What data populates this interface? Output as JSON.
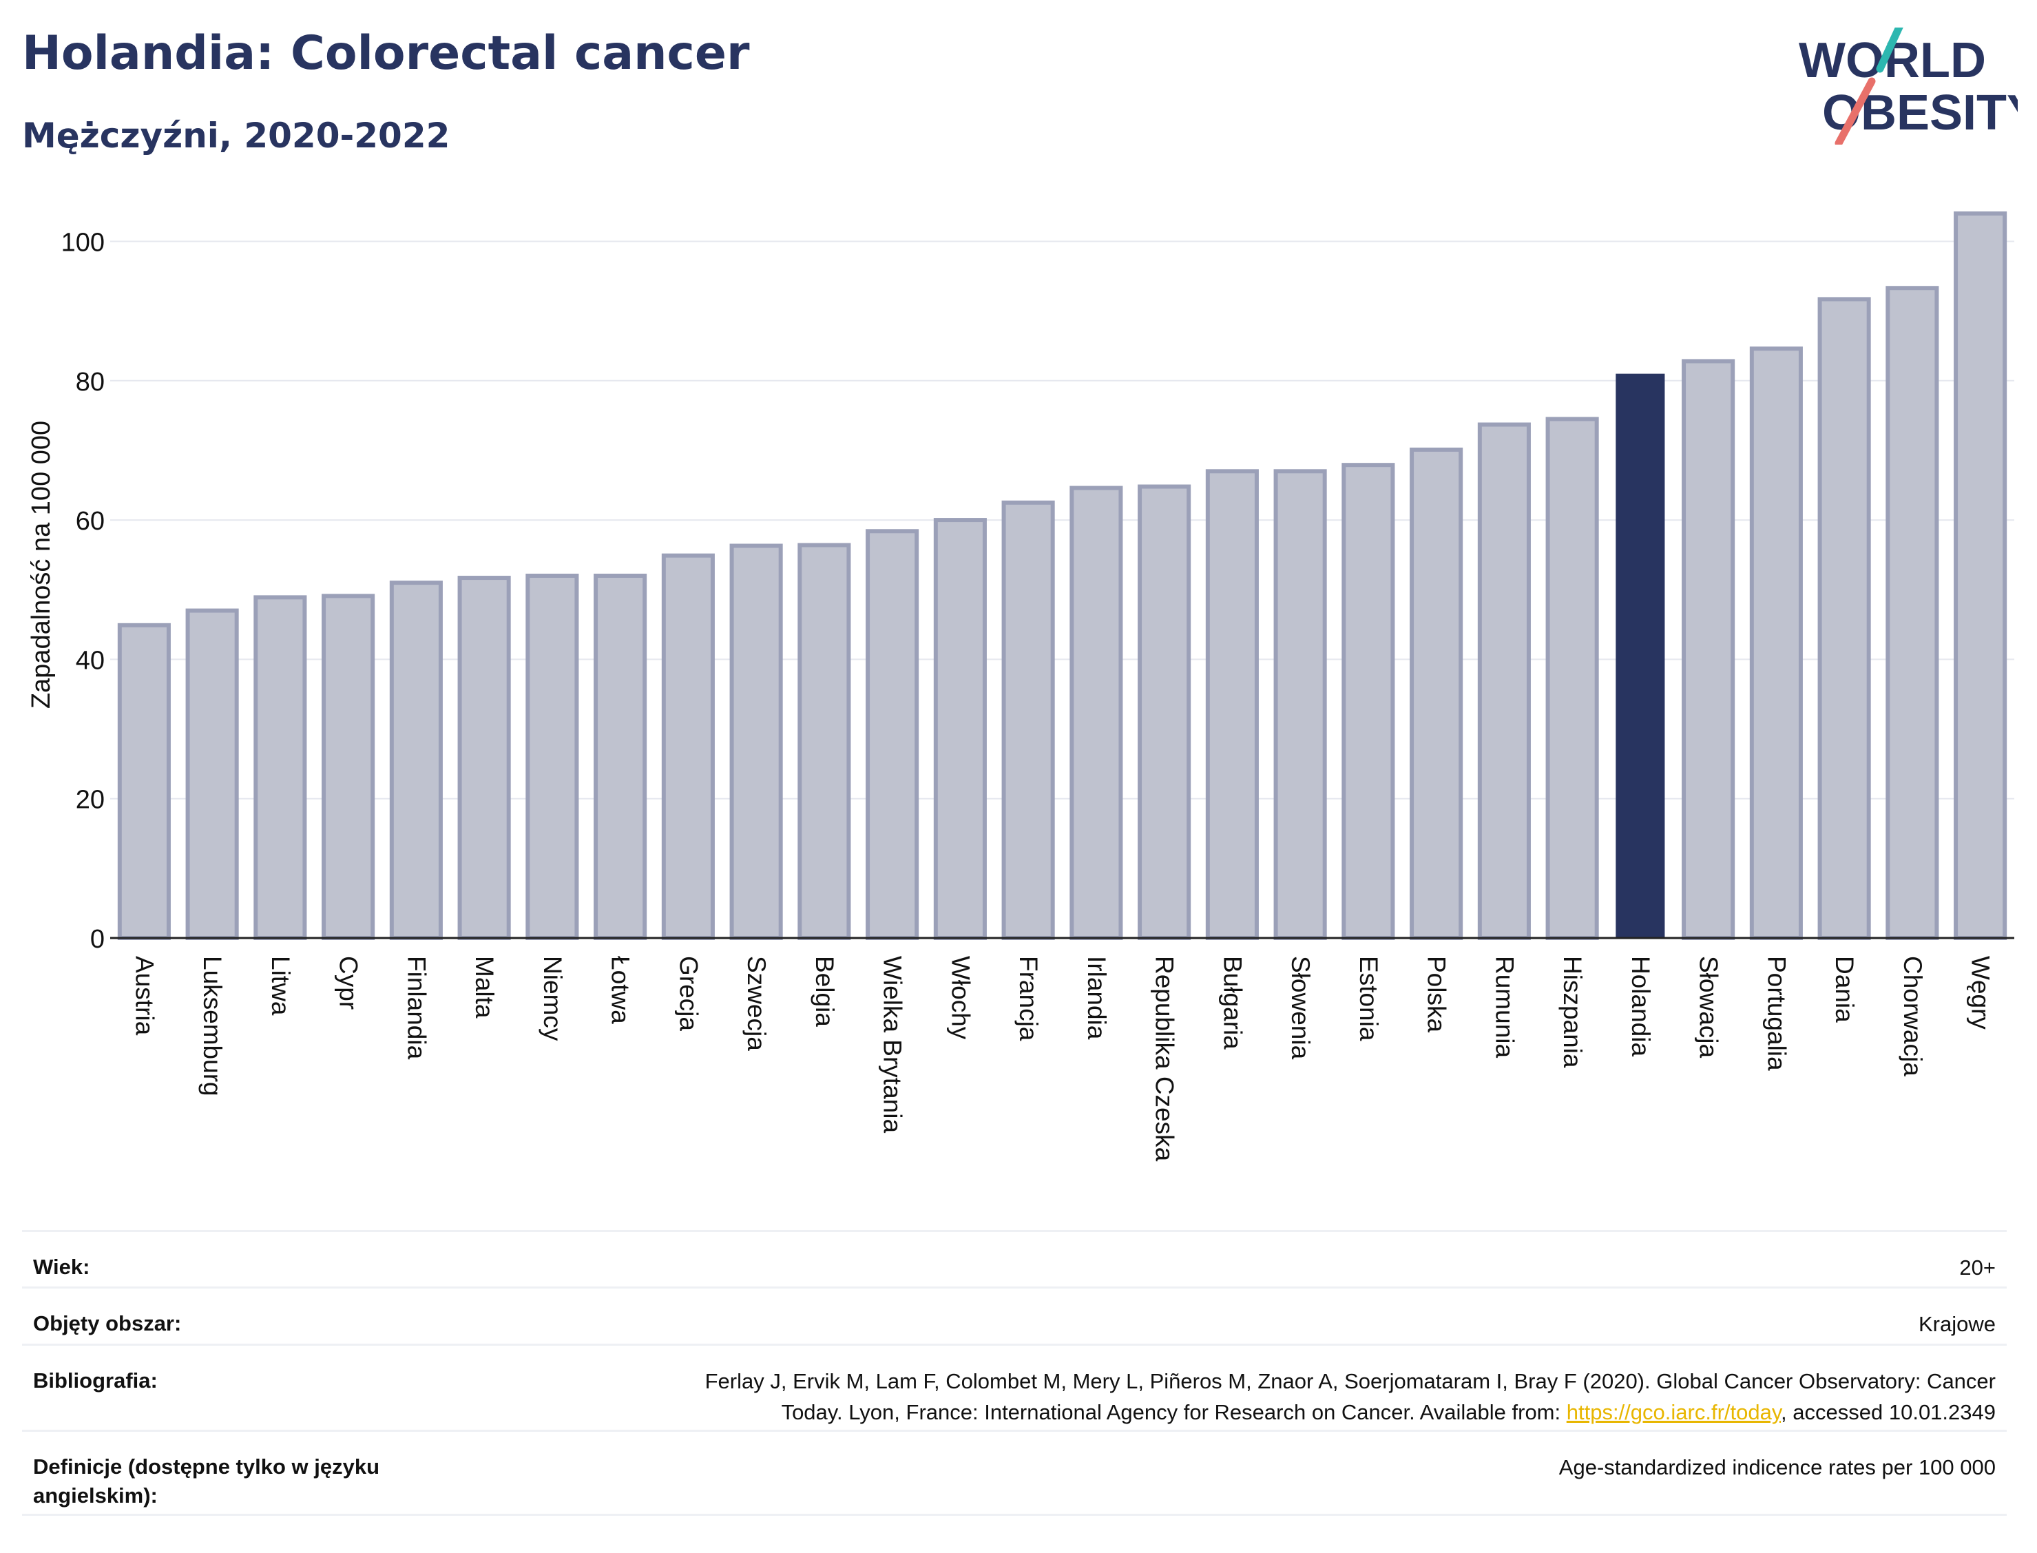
{
  "header": {
    "title": "Holandia: Colorectal cancer",
    "subtitle": "Mężczyźni, 2020-2022"
  },
  "logo": {
    "line1": "WORLD",
    "line2": "OBESITY"
  },
  "colors": {
    "highlight": "#283460",
    "bar_fill": "#bfc2cf",
    "bar_stroke": "#9ba0b8",
    "grid": "#e6e8ef",
    "logo_teal": "#2cb7b0",
    "logo_coral": "#e8706a"
  },
  "chart_data": {
    "type": "bar",
    "ylabel": "Zapadalność na 100 000",
    "ylim": [
      0,
      104
    ],
    "yticks": [
      0,
      20,
      40,
      60,
      80,
      100
    ],
    "grid": true,
    "highlight": "Holandia",
    "categories": [
      "Austria",
      "Luksemburg",
      "Litwa",
      "Cypr",
      "Finlandia",
      "Malta",
      "Niemcy",
      "Łotwa",
      "Grecja",
      "Szwecja",
      "Belgia",
      "Wielka Brytania",
      "Włochy",
      "Francja",
      "Irlandia",
      "Republika Czeska",
      "Bułgaria",
      "Słowenia",
      "Estonia",
      "Polska",
      "Rumunia",
      "Hiszpania",
      "Holandia",
      "Słowacja",
      "Portugalia",
      "Dania",
      "Chorwacja",
      "Węgry"
    ],
    "values": [
      44.9,
      47.0,
      48.9,
      49.1,
      51.0,
      51.7,
      52.0,
      52.0,
      54.9,
      56.3,
      56.4,
      58.4,
      60.0,
      62.5,
      64.6,
      64.8,
      67.0,
      67.0,
      67.9,
      70.1,
      73.7,
      74.5,
      81.0,
      82.8,
      84.6,
      91.7,
      93.3,
      104.0
    ]
  },
  "meta": {
    "age_label": "Wiek:",
    "age_value": "20+",
    "coverage_label": "Objęty obszar:",
    "coverage_value": "Krajowe",
    "bib_label": "Bibliografia:",
    "bib_text_1": "Ferlay J, Ervik M, Lam F, Colombet M, Mery L, Piñeros M, Znaor A, Soerjomataram I, Bray F (2020). Global Cancer Observatory: Cancer",
    "bib_text_2": "Today. Lyon, France: International Agency for Research on Cancer. Available from: ",
    "bib_link": "https://gco.iarc.fr/today",
    "bib_text_3": ", accessed 10.01.2349",
    "def_label": "Definicje (dostępne tylko w języku angielskim):",
    "def_value": "Age-standardized indicence rates per 100 000"
  }
}
